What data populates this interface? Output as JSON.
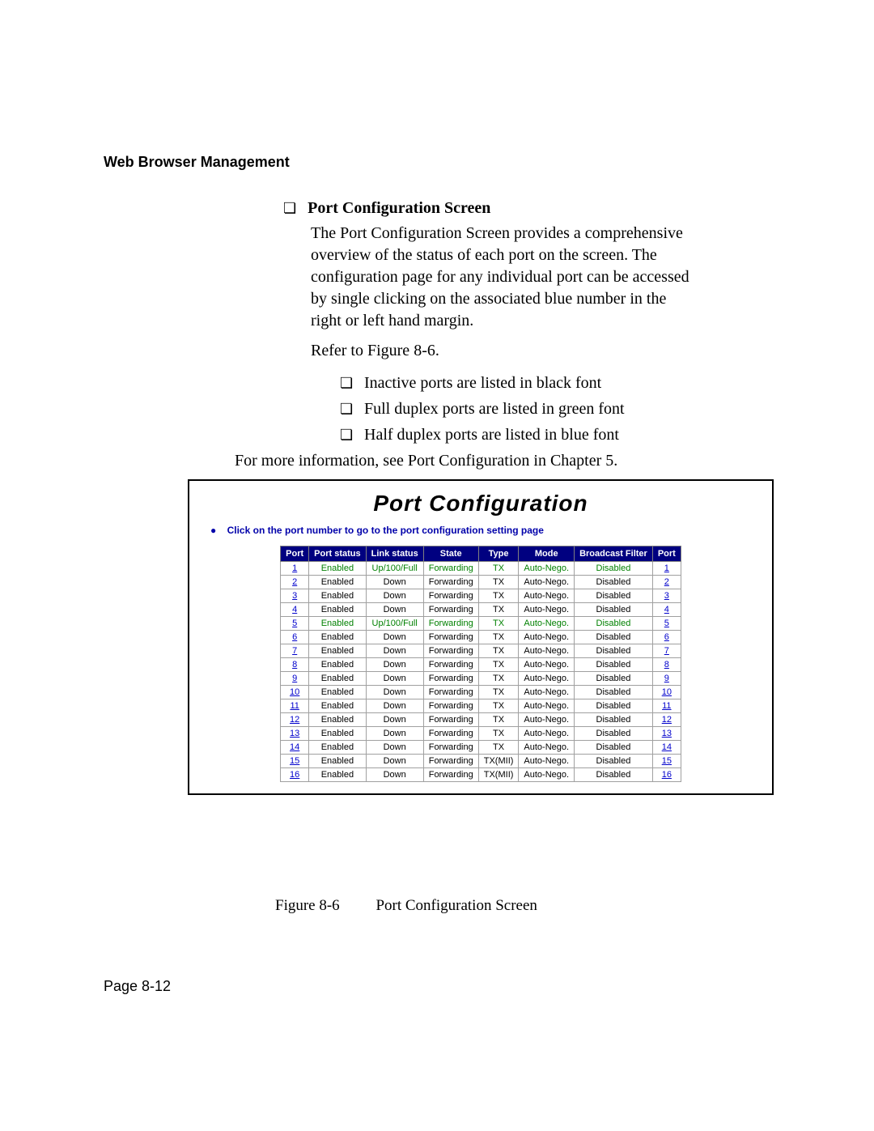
{
  "chapter_header": "Web Browser Management",
  "section": {
    "bullet": "❏",
    "title": "Port Configuration Screen",
    "para1": "The Port Configuration Screen provides a comprehensive overview of the status of each port on the screen. The configuration page for any individual port can be accessed by single clicking on the associated blue number in the right or left hand margin.",
    "refer": "Refer to Figure 8-6.",
    "items": [
      "Inactive ports are listed in black font",
      "Full duplex ports are listed in green font",
      "Half duplex ports are listed in blue font"
    ],
    "more_info": "For more information, see Port Configuration in Chapter 5."
  },
  "screenshot": {
    "title": "Port Configuration",
    "instruction": "Click on the port number to go to the port configuration setting page",
    "columns": [
      "Port",
      "Port status",
      "Link status",
      "State",
      "Type",
      "Mode",
      "Broadcast Filter",
      "Port"
    ],
    "green_color": "#008000",
    "black_color": "#000000",
    "link_color": "#0000cc",
    "rows": [
      {
        "port": "1",
        "port_status": "Enabled",
        "link_status": "Up/100/Full",
        "state": "Forwarding",
        "type": "TX",
        "mode": "Auto-Nego.",
        "filter": "Disabled",
        "row_color": "green"
      },
      {
        "port": "2",
        "port_status": "Enabled",
        "link_status": "Down",
        "state": "Forwarding",
        "type": "TX",
        "mode": "Auto-Nego.",
        "filter": "Disabled",
        "row_color": "black"
      },
      {
        "port": "3",
        "port_status": "Enabled",
        "link_status": "Down",
        "state": "Forwarding",
        "type": "TX",
        "mode": "Auto-Nego.",
        "filter": "Disabled",
        "row_color": "black"
      },
      {
        "port": "4",
        "port_status": "Enabled",
        "link_status": "Down",
        "state": "Forwarding",
        "type": "TX",
        "mode": "Auto-Nego.",
        "filter": "Disabled",
        "row_color": "black"
      },
      {
        "port": "5",
        "port_status": "Enabled",
        "link_status": "Up/100/Full",
        "state": "Forwarding",
        "type": "TX",
        "mode": "Auto-Nego.",
        "filter": "Disabled",
        "row_color": "green"
      },
      {
        "port": "6",
        "port_status": "Enabled",
        "link_status": "Down",
        "state": "Forwarding",
        "type": "TX",
        "mode": "Auto-Nego.",
        "filter": "Disabled",
        "row_color": "black"
      },
      {
        "port": "7",
        "port_status": "Enabled",
        "link_status": "Down",
        "state": "Forwarding",
        "type": "TX",
        "mode": "Auto-Nego.",
        "filter": "Disabled",
        "row_color": "black"
      },
      {
        "port": "8",
        "port_status": "Enabled",
        "link_status": "Down",
        "state": "Forwarding",
        "type": "TX",
        "mode": "Auto-Nego.",
        "filter": "Disabled",
        "row_color": "black"
      },
      {
        "port": "9",
        "port_status": "Enabled",
        "link_status": "Down",
        "state": "Forwarding",
        "type": "TX",
        "mode": "Auto-Nego.",
        "filter": "Disabled",
        "row_color": "black"
      },
      {
        "port": "10",
        "port_status": "Enabled",
        "link_status": "Down",
        "state": "Forwarding",
        "type": "TX",
        "mode": "Auto-Nego.",
        "filter": "Disabled",
        "row_color": "black"
      },
      {
        "port": "11",
        "port_status": "Enabled",
        "link_status": "Down",
        "state": "Forwarding",
        "type": "TX",
        "mode": "Auto-Nego.",
        "filter": "Disabled",
        "row_color": "black"
      },
      {
        "port": "12",
        "port_status": "Enabled",
        "link_status": "Down",
        "state": "Forwarding",
        "type": "TX",
        "mode": "Auto-Nego.",
        "filter": "Disabled",
        "row_color": "black"
      },
      {
        "port": "13",
        "port_status": "Enabled",
        "link_status": "Down",
        "state": "Forwarding",
        "type": "TX",
        "mode": "Auto-Nego.",
        "filter": "Disabled",
        "row_color": "black"
      },
      {
        "port": "14",
        "port_status": "Enabled",
        "link_status": "Down",
        "state": "Forwarding",
        "type": "TX",
        "mode": "Auto-Nego.",
        "filter": "Disabled",
        "row_color": "black"
      },
      {
        "port": "15",
        "port_status": "Enabled",
        "link_status": "Down",
        "state": "Forwarding",
        "type": "TX(MII)",
        "mode": "Auto-Nego.",
        "filter": "Disabled",
        "row_color": "black"
      },
      {
        "port": "16",
        "port_status": "Enabled",
        "link_status": "Down",
        "state": "Forwarding",
        "type": "TX(MII)",
        "mode": "Auto-Nego.",
        "filter": "Disabled",
        "row_color": "black"
      }
    ]
  },
  "figure_caption": {
    "label": "Figure 8-6",
    "text": "Port Configuration Screen"
  },
  "page_number": "Page 8-12"
}
